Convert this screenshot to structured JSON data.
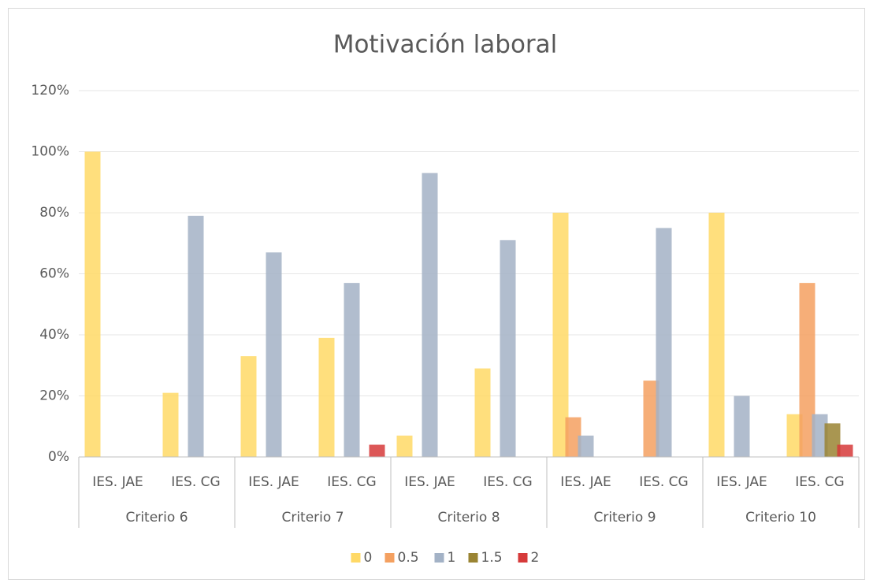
{
  "chart_data": {
    "type": "bar",
    "title": "Motivación laboral",
    "categories": [
      "IES. JAE",
      "IES. CG",
      "IES. JAE",
      "IES. CG",
      "IES. JAE",
      "IES. CG",
      "IES. JAE",
      "IES. CG",
      "IES. JAE",
      "IES. CG"
    ],
    "group_labels": [
      "Criterio 6",
      "Criterio 7",
      "Criterio 8",
      "Criterio 9",
      "Criterio 10"
    ],
    "series": [
      {
        "name": "0",
        "color": "#ffd966",
        "values": [
          100,
          21,
          33,
          39,
          7,
          29,
          80,
          0,
          80,
          14
        ]
      },
      {
        "name": "0.5",
        "color": "#f4a060",
        "values": [
          0,
          0,
          0,
          0,
          0,
          0,
          13,
          25,
          0,
          57
        ]
      },
      {
        "name": "1",
        "color": "#a3b2c6",
        "values": [
          0,
          79,
          67,
          57,
          93,
          71,
          7,
          75,
          20,
          14
        ]
      },
      {
        "name": "1.5",
        "color": "#9a8433",
        "values": [
          0,
          0,
          0,
          0,
          0,
          0,
          0,
          0,
          0,
          11
        ]
      },
      {
        "name": "2",
        "color": "#d63a3a",
        "values": [
          0,
          0,
          0,
          4,
          0,
          0,
          0,
          0,
          0,
          4
        ]
      }
    ],
    "ylim": [
      0,
      120
    ],
    "yticks": [
      {
        "value": 0,
        "label": "0%"
      },
      {
        "value": 20,
        "label": "20%"
      },
      {
        "value": 40,
        "label": "40%"
      },
      {
        "value": 60,
        "label": "60%"
      },
      {
        "value": 80,
        "label": "80%"
      },
      {
        "value": 100,
        "label": "100%"
      },
      {
        "value": 120,
        "label": "120%"
      }
    ],
    "grid": true,
    "legend": "bottom"
  }
}
